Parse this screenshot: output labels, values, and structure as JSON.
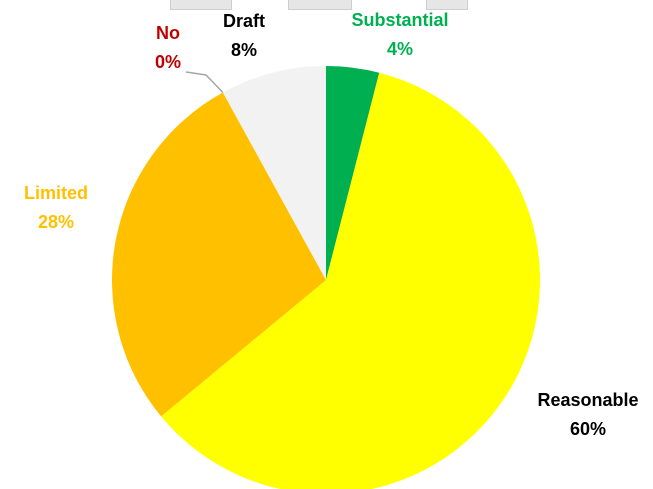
{
  "chart_data": {
    "type": "pie",
    "title": "",
    "start_angle_deg": 0,
    "direction": "clockwise",
    "slices": [
      {
        "name": "Substantial",
        "value": 4,
        "label": "4%",
        "color": "#00b050",
        "label_color": "#00b050"
      },
      {
        "name": "Reasonable",
        "value": 60,
        "label": "60%",
        "color": "#ffff00",
        "label_color": "#000000"
      },
      {
        "name": "Limited",
        "value": 28,
        "label": "28%",
        "color": "#ffc000",
        "label_color": "#ffc000"
      },
      {
        "name": "No",
        "value": 0,
        "label": "0%",
        "color": "#c00000",
        "label_color": "#c00000"
      },
      {
        "name": "Draft",
        "value": 8,
        "label": "8%",
        "color": "#f2f2f2",
        "label_color": "#000000"
      }
    ],
    "legend": "none"
  }
}
